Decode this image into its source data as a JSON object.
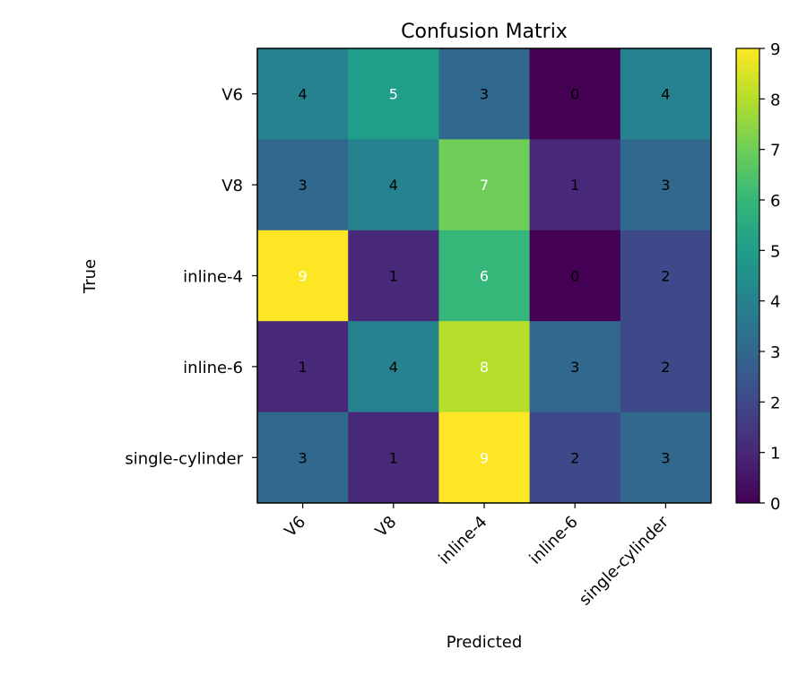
{
  "chart_data": {
    "type": "heatmap",
    "title": "Confusion Matrix",
    "xlabel": "Predicted",
    "ylabel": "True",
    "x_categories": [
      "V6",
      "V8",
      "inline-4",
      "inline-6",
      "single-cylinder"
    ],
    "y_categories": [
      "V6",
      "V8",
      "inline-4",
      "inline-6",
      "single-cylinder"
    ],
    "values": [
      [
        4,
        5,
        3,
        0,
        4
      ],
      [
        3,
        4,
        7,
        1,
        3
      ],
      [
        9,
        1,
        6,
        0,
        2
      ],
      [
        1,
        4,
        8,
        3,
        2
      ],
      [
        3,
        1,
        9,
        2,
        3
      ]
    ],
    "colormap": "viridis",
    "value_range": [
      0,
      9
    ],
    "colorbar_ticks": [
      0,
      1,
      2,
      3,
      4,
      5,
      6,
      7,
      8,
      9
    ],
    "grid": false,
    "colorbar_placement": "right"
  }
}
